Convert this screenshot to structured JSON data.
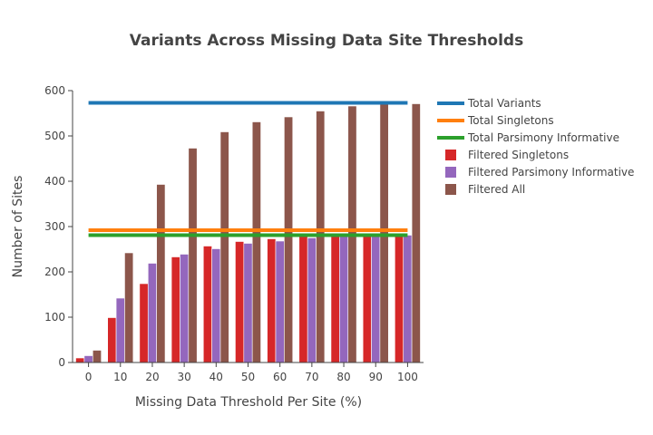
{
  "chart_data": {
    "type": "bar",
    "title": "Variants Across Missing Data Site Thresholds",
    "xlabel": "Missing Data Threshold Per Site (%)",
    "ylabel": "Number of Sites",
    "ylim": [
      0,
      600
    ],
    "yticks": [
      0,
      100,
      200,
      300,
      400,
      500,
      600
    ],
    "categories": [
      "0",
      "10",
      "20",
      "30",
      "40",
      "50",
      "60",
      "70",
      "80",
      "90",
      "100"
    ],
    "bar_series": [
      {
        "name": "Filtered Singletons",
        "color": "#d62728",
        "values": [
          10,
          99,
          174,
          233,
          257,
          267,
          273,
          279,
          282,
          284,
          285
        ]
      },
      {
        "name": "Filtered Parsimony Informative",
        "color": "#9467bd",
        "values": [
          15,
          142,
          219,
          239,
          251,
          263,
          268,
          275,
          279,
          280,
          281
        ]
      },
      {
        "name": "Filtered All",
        "color": "#8c564b",
        "values": [
          27,
          242,
          393,
          473,
          509,
          531,
          542,
          555,
          566,
          570,
          571
        ]
      }
    ],
    "line_series": [
      {
        "name": "Total Variants",
        "color": "#1f77b4",
        "value": 573
      },
      {
        "name": "Total Singletons",
        "color": "#ff7f0e",
        "value": 292
      },
      {
        "name": "Total Parsimony Informative",
        "color": "#2ca02c",
        "value": 281
      }
    ],
    "legend_order": [
      "Total Variants",
      "Total Singletons",
      "Total Parsimony Informative",
      "Filtered Singletons",
      "Filtered Parsimony Informative",
      "Filtered All"
    ],
    "grid": false,
    "legend_position": "right"
  }
}
